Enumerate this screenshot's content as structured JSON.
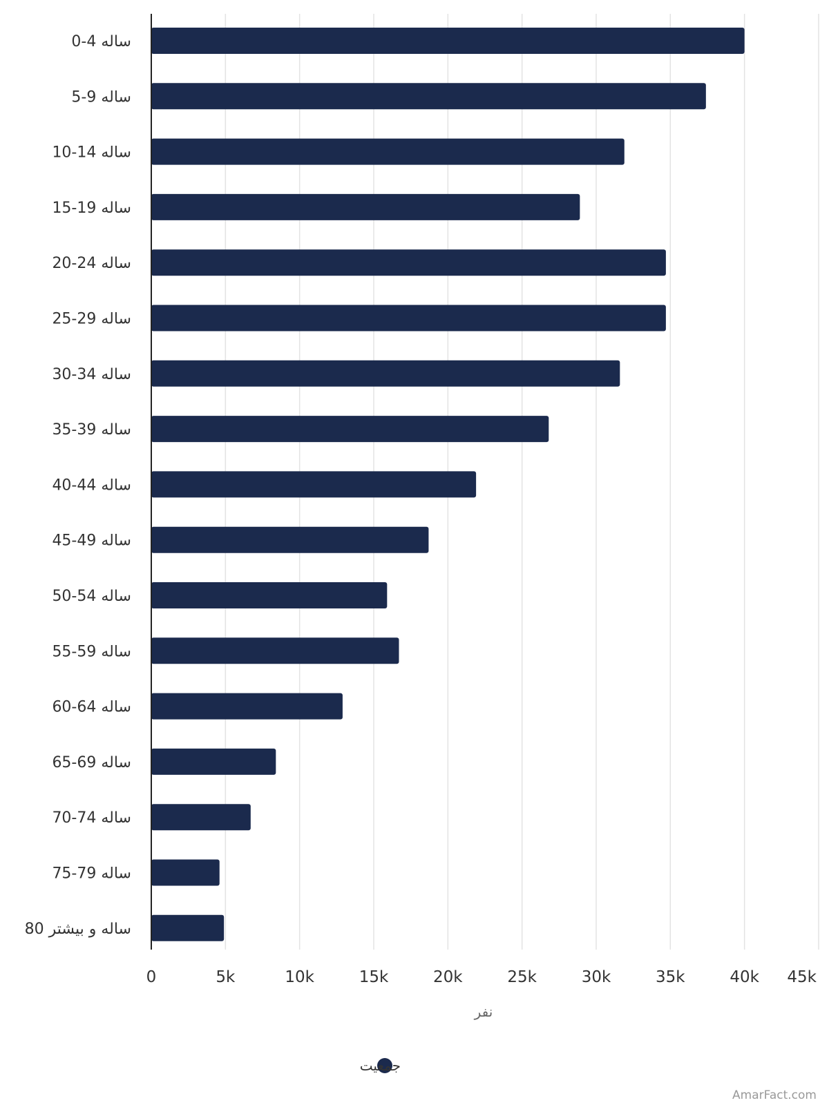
{
  "chart_data": {
    "type": "bar",
    "orientation": "horizontal",
    "categories": [
      "0-4 ساله",
      "5-9 ساله",
      "10-14 ساله",
      "15-19 ساله",
      "20-24 ساله",
      "25-29 ساله",
      "30-34 ساله",
      "35-39 ساله",
      "40-44 ساله",
      "45-49 ساله",
      "50-54 ساله",
      "55-59 ساله",
      "60-64 ساله",
      "65-69 ساله",
      "70-74 ساله",
      "75-79 ساله",
      "80 ساله و بیشتر"
    ],
    "series": [
      {
        "name": "جمعیت",
        "color": "#1b2a4d",
        "values": [
          40000,
          37400,
          31900,
          28900,
          34700,
          34700,
          31600,
          26800,
          21900,
          18700,
          15900,
          16700,
          12900,
          8400,
          6700,
          4600,
          4900
        ]
      }
    ],
    "xticks": [
      0,
      5000,
      10000,
      15000,
      20000,
      25000,
      30000,
      35000,
      40000,
      45000
    ],
    "xtick_labels": [
      "0",
      "5k",
      "10k",
      "15k",
      "20k",
      "25k",
      "30k",
      "35k",
      "40k",
      "45k"
    ],
    "xlim": [
      0,
      45000
    ],
    "xlabel": "نفر",
    "ylabel": "",
    "grid": true,
    "legend_position": "bottom-center",
    "credit": "AmarFact.com"
  }
}
